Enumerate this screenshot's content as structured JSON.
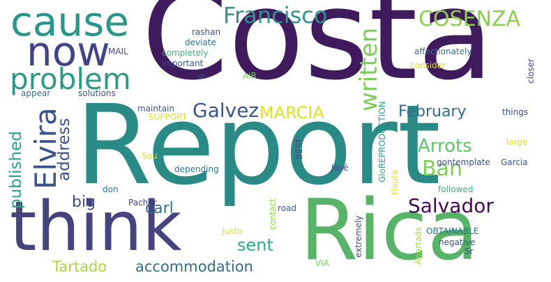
{
  "word_cloud": {
    "words": [
      {
        "text": "Costa",
        "color": "#3f1a5c"
      },
      {
        "text": "Report",
        "color": "#2a8a86"
      },
      {
        "text": "Rica",
        "color": "#56b367"
      },
      {
        "text": "think",
        "color": "#46437e"
      },
      {
        "text": "cause",
        "color": "#27968b"
      },
      {
        "text": "now",
        "color": "#414487"
      },
      {
        "text": "problem",
        "color": "#2b9b84"
      },
      {
        "text": "Francisco",
        "color": "#31938a"
      },
      {
        "text": "COSENZA",
        "color": "#8bd04c"
      },
      {
        "text": "written",
        "color": "#7ccf56"
      },
      {
        "text": "Elvira",
        "color": "#3b528b"
      },
      {
        "text": "Galvez",
        "color": "#39568c"
      },
      {
        "text": "address",
        "color": "#3d4e8a"
      },
      {
        "text": "MARCIA",
        "color": "#dde318"
      },
      {
        "text": "February",
        "color": "#2f6d8e"
      },
      {
        "text": "published",
        "color": "#2aa383"
      },
      {
        "text": "Arrots",
        "color": "#5cc863"
      },
      {
        "text": "Ban",
        "color": "#7ad151"
      },
      {
        "text": "Salvador",
        "color": "#440a56"
      },
      {
        "text": "big",
        "color": "#3e4a89"
      },
      {
        "text": "carl",
        "color": "#2b768e"
      },
      {
        "text": "sent",
        "color": "#28ae80"
      },
      {
        "text": "Tartado",
        "color": "#a8db34"
      },
      {
        "text": "accommodation",
        "color": "#2c6f8e"
      },
      {
        "text": "rashan",
        "color": "#3b528b"
      },
      {
        "text": "deviate",
        "color": "#2d708e"
      },
      {
        "text": "completely",
        "color": "#35b779"
      },
      {
        "text": "important",
        "color": "#3b528b"
      },
      {
        "text": "MAIL",
        "color": "#4a4a8a"
      },
      {
        "text": "us",
        "color": "#3a528b"
      },
      {
        "text": "AIR",
        "color": "#6ccd5a"
      },
      {
        "text": "affectionately",
        "color": "#2c728e"
      },
      {
        "text": "consider",
        "color": "#dfe318"
      },
      {
        "text": "closer",
        "color": "#4a3c8a"
      },
      {
        "text": "appear",
        "color": "#2e6e8e"
      },
      {
        "text": "solutions",
        "color": "#3a548c"
      },
      {
        "text": "maintain",
        "color": "#3b528b"
      },
      {
        "text": "SUPPORT",
        "color": "#dde318"
      },
      {
        "text": "GloREPRODUCTION",
        "color": "#22a884"
      },
      {
        "text": "things",
        "color": "#3e4989"
      },
      {
        "text": "large",
        "color": "#e2e418"
      },
      {
        "text": "BEST",
        "color": "#3e4989"
      },
      {
        "text": "Sou",
        "color": "#e2e418"
      },
      {
        "text": "depending",
        "color": "#2c728e"
      },
      {
        "text": "José",
        "color": "#3e4989"
      },
      {
        "text": "gontemplate",
        "color": "#3b528b"
      },
      {
        "text": "Garcia",
        "color": "#3b528b"
      },
      {
        "text": "Houta",
        "color": "#e6e419"
      },
      {
        "text": "followed",
        "color": "#2fb47c"
      },
      {
        "text": "don",
        "color": "#2a788e"
      },
      {
        "text": "Pachur",
        "color": "#414487"
      },
      {
        "text": "contact",
        "color": "#8fd744"
      },
      {
        "text": "road",
        "color": "#3b528b"
      },
      {
        "text": "Justo",
        "color": "#dde318"
      },
      {
        "text": "extremely",
        "color": "#3f4788"
      },
      {
        "text": "Apartads",
        "color": "#aadc32"
      },
      {
        "text": "OBTAINABLE",
        "color": "#2c728e"
      },
      {
        "text": "negative",
        "color": "#3b528b"
      },
      {
        "text": "Sr",
        "color": "#3b528b"
      },
      {
        "text": "VIA",
        "color": "#7ad151"
      }
    ]
  }
}
